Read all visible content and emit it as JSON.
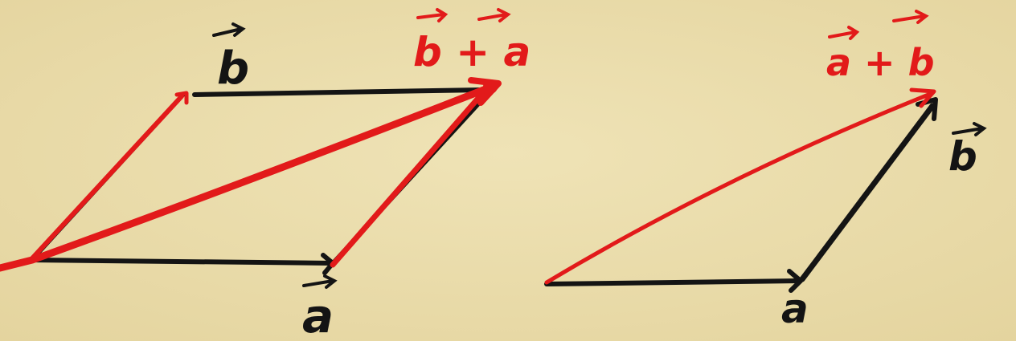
{
  "colors": {
    "paper": "#eadcac",
    "ink_black": "#141414",
    "ink_red": "#e21a1a"
  },
  "left_figure": {
    "label_b": "b",
    "label_a": "a",
    "label_sum": "b + a"
  },
  "right_figure": {
    "label_a": "a",
    "label_b": "b",
    "label_sum": "a + b"
  }
}
